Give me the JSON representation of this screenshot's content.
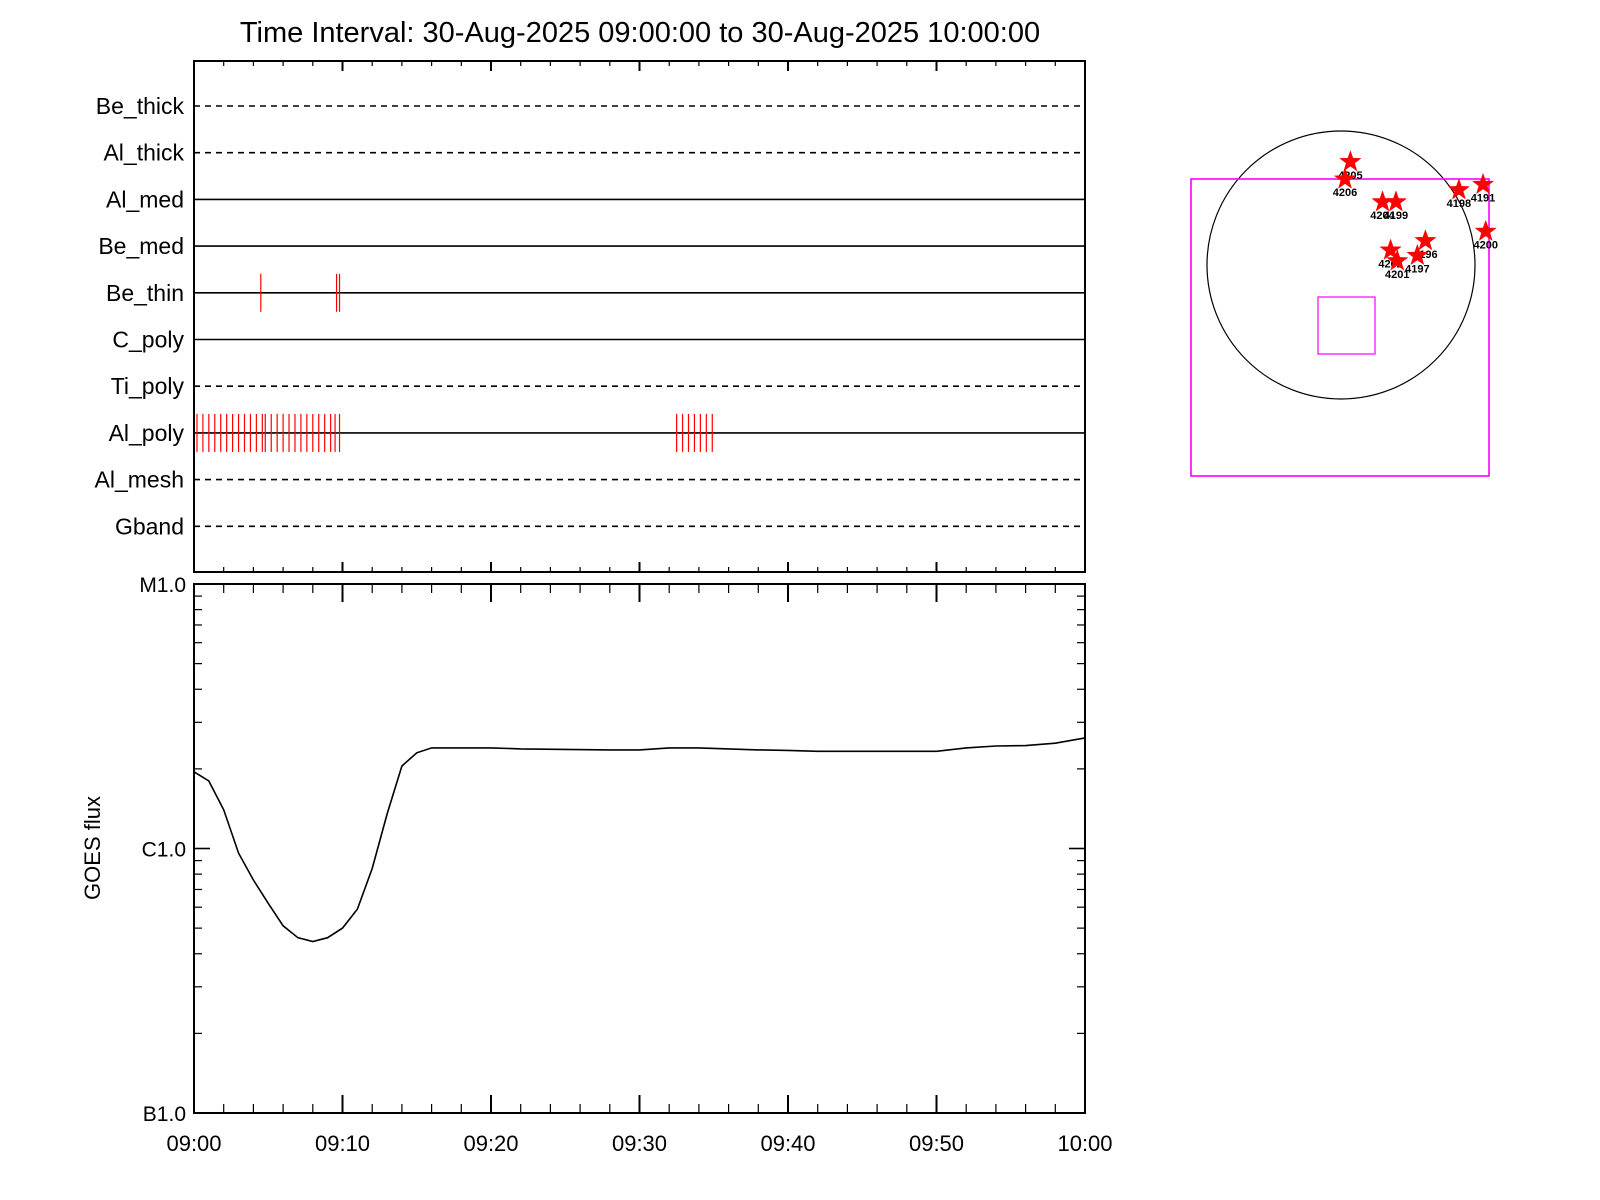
{
  "title": "Time Interval: 30-Aug-2025 09:00:00 to 30-Aug-2025 10:00:00",
  "colors": {
    "axis": "#000000",
    "event": "#ff0000",
    "fov": "#ff00ff",
    "curve": "#000000"
  },
  "chart_data": [
    {
      "type": "timeline",
      "name": "filter-timeline",
      "x_range": [
        "09:00",
        "10:00"
      ],
      "rows": [
        {
          "label": "Be_thick",
          "line_style": "dashed",
          "events_min": []
        },
        {
          "label": "Al_thick",
          "line_style": "dashed",
          "events_min": []
        },
        {
          "label": "Al_med",
          "line_style": "solid",
          "events_min": []
        },
        {
          "label": "Be_med",
          "line_style": "solid",
          "events_min": []
        },
        {
          "label": "Be_thin",
          "line_style": "solid",
          "events_min": [
            4.5,
            9.6,
            9.8
          ]
        },
        {
          "label": "C_poly",
          "line_style": "solid",
          "events_min": []
        },
        {
          "label": "Ti_poly",
          "line_style": "dashed",
          "events_min": []
        },
        {
          "label": "Al_poly",
          "line_style": "solid",
          "events_min": [
            0.2,
            0.6,
            1.0,
            1.4,
            1.8,
            2.2,
            2.6,
            3.0,
            3.4,
            3.8,
            4.2,
            4.6,
            4.8,
            5.2,
            5.6,
            6.0,
            6.4,
            6.8,
            7.2,
            7.6,
            8.0,
            8.4,
            8.8,
            9.2,
            9.5,
            9.8,
            32.5,
            32.9,
            33.3,
            33.7,
            34.1,
            34.5,
            34.9
          ]
        },
        {
          "label": "Al_mesh",
          "line_style": "dashed",
          "events_min": []
        },
        {
          "label": "Gband",
          "line_style": "dashed",
          "events_min": []
        }
      ]
    },
    {
      "type": "line",
      "name": "goes-flux",
      "ylabel": "GOES flux",
      "y_scale": "log",
      "ylim": [
        1e-07,
        1e-05
      ],
      "y_ticks": [
        {
          "value": 1e-07,
          "label": "B1.0"
        },
        {
          "value": 1e-06,
          "label": "C1.0"
        },
        {
          "value": 1e-05,
          "label": "M1.0"
        }
      ],
      "x_tick_labels": [
        "09:00",
        "09:10",
        "09:20",
        "09:30",
        "09:40",
        "09:50",
        "10:00"
      ],
      "x_tick_minutes": [
        0,
        10,
        20,
        30,
        40,
        50,
        60
      ],
      "x_minutes": [
        0,
        1,
        2,
        3,
        4,
        5,
        6,
        7,
        8,
        9,
        10,
        11,
        12,
        13,
        14,
        15,
        16,
        18,
        20,
        22,
        25,
        28,
        30,
        32,
        34,
        36,
        38,
        40,
        42,
        44,
        46,
        48,
        50,
        52,
        54,
        56,
        58,
        60
      ],
      "y": [
        1.95e-06,
        1.8e-06,
        1.4e-06,
        9.6e-07,
        7.6e-07,
        6.2e-07,
        5.1e-07,
        4.6e-07,
        4.45e-07,
        4.6e-07,
        5e-07,
        5.9e-07,
        8.4e-07,
        1.35e-06,
        2.05e-06,
        2.3e-06,
        2.4e-06,
        2.4e-06,
        2.4e-06,
        2.38e-06,
        2.37e-06,
        2.36e-06,
        2.36e-06,
        2.4e-06,
        2.4e-06,
        2.38e-06,
        2.36e-06,
        2.35e-06,
        2.33e-06,
        2.33e-06,
        2.33e-06,
        2.33e-06,
        2.33e-06,
        2.4e-06,
        2.44e-06,
        2.45e-06,
        2.5e-06,
        2.62e-06
      ]
    },
    {
      "type": "scatter",
      "name": "active-region-map",
      "points": [
        {
          "label": "4205",
          "x": 0.07,
          "y": 0.77
        },
        {
          "label": "4206",
          "x": 0.03,
          "y": 0.64
        },
        {
          "label": "4204",
          "x": 0.31,
          "y": 0.47
        },
        {
          "label": "4199",
          "x": 0.41,
          "y": 0.47
        },
        {
          "label": "4198",
          "x": 0.88,
          "y": 0.56
        },
        {
          "label": "4191",
          "x": 1.06,
          "y": 0.6
        },
        {
          "label": "4200",
          "x": 1.08,
          "y": 0.25
        },
        {
          "label": "4196",
          "x": 0.63,
          "y": 0.18
        },
        {
          "label": "4202",
          "x": 0.37,
          "y": 0.11
        },
        {
          "label": "4201",
          "x": 0.42,
          "y": 0.03
        },
        {
          "label": "4197",
          "x": 0.57,
          "y": 0.07
        }
      ]
    }
  ]
}
